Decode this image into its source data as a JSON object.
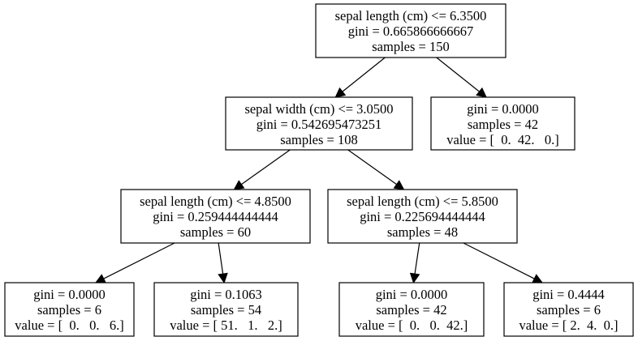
{
  "tree": {
    "nodes": [
      {
        "id": "n0",
        "lines": [
          "sepal length (cm) <= 6.3500",
          "gini = 0.665866666667",
          "samples = 150"
        ]
      },
      {
        "id": "n1",
        "lines": [
          "sepal width (cm) <= 3.0500",
          "gini = 0.542695473251",
          "samples = 108"
        ]
      },
      {
        "id": "n2",
        "lines": [
          "gini = 0.0000",
          "samples = 42",
          "value = [  0.  42.   0.]"
        ]
      },
      {
        "id": "n3",
        "lines": [
          "sepal length (cm) <= 4.8500",
          "gini = 0.259444444444",
          "samples = 60"
        ]
      },
      {
        "id": "n4",
        "lines": [
          "sepal length (cm) <= 5.8500",
          "gini = 0.225694444444",
          "samples = 48"
        ]
      },
      {
        "id": "n5",
        "lines": [
          "gini = 0.0000",
          "samples = 6",
          "value = [  0.   0.   6.]"
        ]
      },
      {
        "id": "n6",
        "lines": [
          "gini = 0.1063",
          "samples = 54",
          "value = [ 51.   1.   2.]"
        ]
      },
      {
        "id": "n7",
        "lines": [
          "gini = 0.0000",
          "samples = 42",
          "value = [  0.   0.  42.]"
        ]
      },
      {
        "id": "n8",
        "lines": [
          "gini = 0.4444",
          "samples = 6",
          "value = [ 2.  4.  0.]"
        ]
      }
    ],
    "edges": [
      {
        "from": "n0",
        "to": "n1"
      },
      {
        "from": "n0",
        "to": "n2"
      },
      {
        "from": "n1",
        "to": "n3"
      },
      {
        "from": "n1",
        "to": "n4"
      },
      {
        "from": "n3",
        "to": "n5"
      },
      {
        "from": "n3",
        "to": "n6"
      },
      {
        "from": "n4",
        "to": "n7"
      },
      {
        "from": "n4",
        "to": "n8"
      }
    ]
  }
}
